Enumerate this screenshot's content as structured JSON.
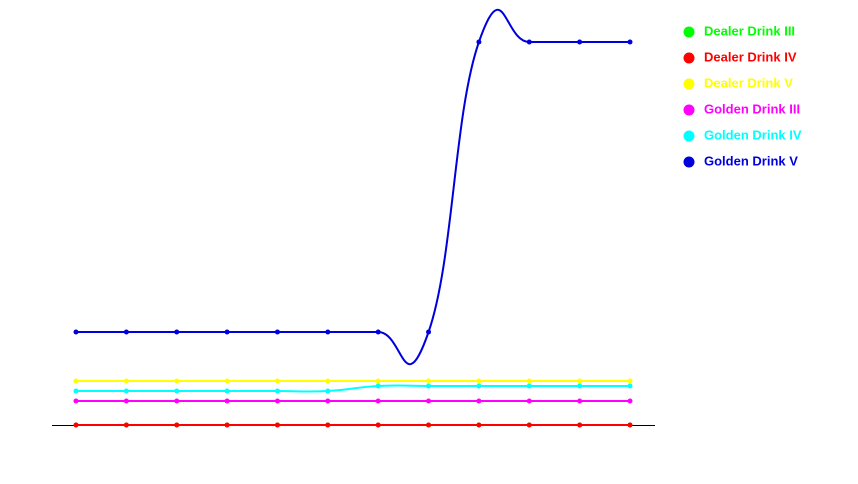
{
  "chart_data": {
    "type": "line",
    "categories": [
      null,
      null,
      null,
      null,
      null,
      null,
      null,
      null,
      null,
      null,
      null,
      null
    ],
    "ylim": [
      0,
      400
    ],
    "legend": "top-right",
    "series": [
      {
        "name": "Dealer Drink III",
        "color": "#00ff00",
        "values": [
          0,
          0,
          0,
          0,
          0,
          0,
          0,
          0,
          0,
          0,
          0,
          0
        ]
      },
      {
        "name": "Dealer Drink IV",
        "color": "#ff0000",
        "values": [
          0,
          0,
          0,
          0,
          0,
          0,
          0,
          0,
          0,
          0,
          0,
          0
        ]
      },
      {
        "name": "Dealer Drink V",
        "color": "#ffff00",
        "values": [
          44,
          44,
          44,
          44,
          44,
          44,
          44,
          44,
          44,
          44,
          44,
          44
        ]
      },
      {
        "name": "Golden Drink III",
        "color": "#ff00ff",
        "values": [
          24,
          24,
          24,
          24,
          24,
          24,
          24,
          24,
          24,
          24,
          24,
          24
        ]
      },
      {
        "name": "Golden Drink IV",
        "color": "#00ffff",
        "values": [
          34,
          34,
          34,
          34,
          34,
          34,
          39,
          39,
          39,
          39,
          39,
          39
        ]
      },
      {
        "name": "Golden Drink V",
        "color": "#0000dd",
        "values": [
          93,
          93,
          93,
          93,
          93,
          93,
          93,
          93,
          383,
          383,
          383,
          383
        ]
      }
    ]
  }
}
